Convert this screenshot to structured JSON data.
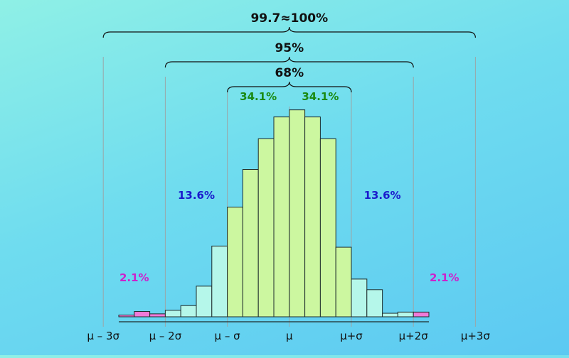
{
  "chart_data": {
    "type": "bar",
    "title": "",
    "xlabel": "",
    "ylabel": "",
    "grid": false,
    "legend": "none",
    "x_tick_labels": [
      "μ – 3σ",
      "μ – 2σ",
      "μ – σ",
      "μ",
      "μ+σ",
      "μ+2σ",
      "μ+3σ"
    ],
    "bins": [
      {
        "from": -4.0,
        "to": -3.5,
        "value": 0.3
      },
      {
        "from": -3.5,
        "to": -3.0,
        "value": 0.9
      },
      {
        "from": -3.0,
        "to": -2.5,
        "value": 0.5
      },
      {
        "from": -2.5,
        "to": -2.0,
        "value": 1.1
      },
      {
        "from": -2.0,
        "to": -1.5,
        "value": 1.9
      },
      {
        "from": -1.5,
        "to": -1.0,
        "value": 5.2
      },
      {
        "from": -1.0,
        "to": -0.5,
        "value": 12.0
      },
      {
        "from": -0.5,
        "to": 0.0,
        "value": 18.6
      },
      {
        "from": 0.0,
        "to": 0.5,
        "value": 25.0
      },
      {
        "from": 0.5,
        "to": 1.0,
        "value": 30.2
      },
      {
        "from": 1.0,
        "to": 1.5,
        "value": 33.9
      },
      {
        "from": 1.5,
        "to": 2.0,
        "value": 35.1
      },
      {
        "from": 2.0,
        "to": 2.5,
        "value": 33.9
      },
      {
        "from": 2.5,
        "to": 3.0,
        "value": 30.2
      },
      {
        "from": 3.0,
        "to": 3.5,
        "value": 11.8
      },
      {
        "from": 3.5,
        "to": 4.0,
        "value": 6.4
      },
      {
        "from": 4.0,
        "to": 4.5,
        "value": 4.6
      },
      {
        "from": 4.5,
        "to": 5.0,
        "value": 0.6
      },
      {
        "from": 5.0,
        "to": 5.5,
        "value": 0.8
      },
      {
        "from": 5.5,
        "to": 6.0,
        "value": 0.8
      }
    ],
    "region_colors": {
      "outer": "#f07ad8",
      "middle": "#b5f7ea",
      "inner": "#ccf7a0",
      "edge": "#5ad8b5"
    },
    "label_colors": {
      "inner": "#1a8a12",
      "middle": "#1a1acc",
      "outer": "#cc22cc",
      "bracket": "#111111"
    },
    "brackets": [
      {
        "from": -3,
        "to": 3,
        "label": "99.7≈100%"
      },
      {
        "from": -2,
        "to": 2,
        "label": "95%"
      },
      {
        "from": -1,
        "to": 1,
        "label": "68%"
      }
    ],
    "region_labels": [
      {
        "text": "34.1%",
        "region": "inner",
        "side": "left"
      },
      {
        "text": "34.1%",
        "region": "inner",
        "side": "right"
      },
      {
        "text": "13.6%",
        "region": "middle",
        "side": "left"
      },
      {
        "text": "13.6%",
        "region": "middle",
        "side": "right"
      },
      {
        "text": "2.1%",
        "region": "outer",
        "side": "left"
      },
      {
        "text": "2.1%",
        "region": "outer",
        "side": "right"
      }
    ]
  }
}
